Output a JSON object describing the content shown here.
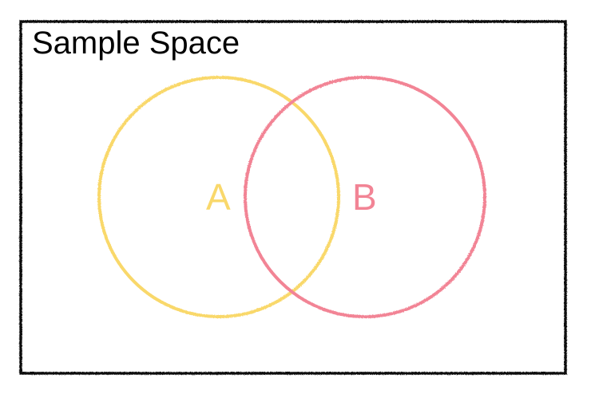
{
  "title": "Sample Space",
  "sets": [
    {
      "label": "A",
      "color": "#F9D86B"
    },
    {
      "label": "B",
      "color": "#F28495"
    }
  ],
  "colors": {
    "border": "#111111",
    "background": "#ffffff"
  }
}
